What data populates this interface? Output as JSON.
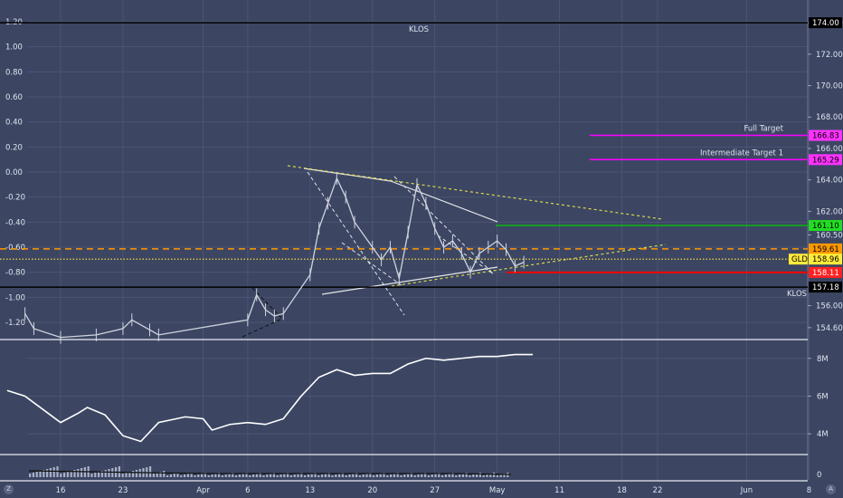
{
  "chart_data": [
    {
      "type": "line",
      "panel": "main",
      "symbol": "GLD",
      "left_axis": {
        "ticks": [
          "1.20",
          "1.00",
          "0.80",
          "0.60",
          "0.40",
          "0.20",
          "0.00",
          "-0.20",
          "-0.40",
          "-0.60",
          "-0.80",
          "-1.00",
          "-1.20"
        ],
        "range": [
          -1.33,
          1.33
        ]
      },
      "right_axis": {
        "ticks": [
          "174.00",
          "172.00",
          "170.00",
          "168.00",
          "166.00",
          "164.00",
          "162.00",
          "160.50",
          "156.00",
          "154.60"
        ],
        "range": [
          153.9,
          175.1
        ]
      },
      "x_ticks": [
        "16",
        "23",
        "Apr",
        "6",
        "13",
        "20",
        "27",
        "May",
        "11",
        "18",
        "22",
        "Jun",
        "8"
      ],
      "price_series": [
        {
          "d": "Mar 12",
          "v": -1.13
        },
        {
          "d": "Mar 13",
          "v": -1.25
        },
        {
          "d": "Mar 16",
          "v": -1.32
        },
        {
          "d": "Mar 20",
          "v": -1.3
        },
        {
          "d": "Mar 23",
          "v": -1.25
        },
        {
          "d": "Mar 24",
          "v": -1.18
        },
        {
          "d": "Mar 26",
          "v": -1.26
        },
        {
          "d": "Mar 27",
          "v": -1.3
        },
        {
          "d": "Apr 6",
          "v": -1.18
        },
        {
          "d": "Apr 7",
          "v": -0.98
        },
        {
          "d": "Apr 8",
          "v": -1.1
        },
        {
          "d": "Apr 9",
          "v": -1.15
        },
        {
          "d": "Apr 10",
          "v": -1.13
        },
        {
          "d": "Apr 13",
          "v": -0.82
        },
        {
          "d": "Apr 14",
          "v": -0.45
        },
        {
          "d": "Apr 15",
          "v": -0.25
        },
        {
          "d": "Apr 16",
          "v": -0.05
        },
        {
          "d": "Apr 17",
          "v": -0.2
        },
        {
          "d": "Apr 18",
          "v": -0.4
        },
        {
          "d": "Apr 20",
          "v": -0.6
        },
        {
          "d": "Apr 21",
          "v": -0.7
        },
        {
          "d": "Apr 22",
          "v": -0.6
        },
        {
          "d": "Apr 23",
          "v": -0.85
        },
        {
          "d": "Apr 24",
          "v": -0.48
        },
        {
          "d": "Apr 25",
          "v": -0.1
        },
        {
          "d": "Apr 26",
          "v": -0.25
        },
        {
          "d": "Apr 27",
          "v": -0.45
        },
        {
          "d": "Apr 28",
          "v": -0.6
        },
        {
          "d": "Apr 29",
          "v": -0.55
        },
        {
          "d": "Apr 30",
          "v": -0.65
        },
        {
          "d": "May 1",
          "v": -0.8
        },
        {
          "d": "May 2",
          "v": -0.65
        },
        {
          "d": "May 3",
          "v": -0.6
        },
        {
          "d": "May 4",
          "v": -0.55
        },
        {
          "d": "May 5",
          "v": -0.62
        },
        {
          "d": "May 6",
          "v": -0.75
        },
        {
          "d": "May 7",
          "v": -0.72
        }
      ],
      "horizontal_lines": [
        {
          "label": "KLOS",
          "price": 174.0,
          "color": "#000000"
        },
        {
          "label": "KLOS",
          "price": 157.18,
          "color": "#000000"
        },
        {
          "label": "Full Target",
          "price": 166.83,
          "color": "#ff00ff"
        },
        {
          "label": "Intermediate Target 1",
          "price": 165.29,
          "color": "#ff00ff"
        },
        {
          "label": "",
          "price": 161.1,
          "color": "#00cc00"
        },
        {
          "label": "",
          "price": 159.61,
          "color": "#ff9800"
        },
        {
          "label": "",
          "price": 158.96,
          "color": "#ffeb3b"
        },
        {
          "label": "",
          "price": 158.11,
          "color": "#ff0000"
        }
      ],
      "price_badges": [
        {
          "text": "174.00",
          "bg": "#000000",
          "fg": "#ffffff",
          "price": 174.0
        },
        {
          "text": "166.83",
          "bg": "#ff33ff",
          "fg": "#000000",
          "price": 166.83
        },
        {
          "text": "165.29",
          "bg": "#ff33ff",
          "fg": "#000000",
          "price": 165.29
        },
        {
          "text": "161.10",
          "bg": "#22dd22",
          "fg": "#000000",
          "price": 161.1
        },
        {
          "text": "159.61",
          "bg": "#ff9800",
          "fg": "#000000",
          "price": 159.61
        },
        {
          "text": "158.96",
          "bg": "#ffeb3b",
          "fg": "#000000",
          "price": 158.96
        },
        {
          "text": "158.11",
          "bg": "#ff2222",
          "fg": "#ffffff",
          "price": 158.11
        },
        {
          "text": "157.18",
          "bg": "#000000",
          "fg": "#ffffff",
          "price": 157.18
        }
      ],
      "symbol_tag": "GLD"
    },
    {
      "type": "line",
      "panel": "indicator",
      "y_ticks": [
        "8M",
        "6M",
        "4M"
      ],
      "range": [
        3.0,
        8.9
      ],
      "series": [
        {
          "d": "Mar 10",
          "v": 6.3
        },
        {
          "d": "Mar 12",
          "v": 6.0
        },
        {
          "d": "Mar 14",
          "v": 5.3
        },
        {
          "d": "Mar 16",
          "v": 4.6
        },
        {
          "d": "Mar 18",
          "v": 5.1
        },
        {
          "d": "Mar 19",
          "v": 5.4
        },
        {
          "d": "Mar 21",
          "v": 5.0
        },
        {
          "d": "Mar 23",
          "v": 3.9
        },
        {
          "d": "Mar 25",
          "v": 3.6
        },
        {
          "d": "Mar 27",
          "v": 4.6
        },
        {
          "d": "Mar 30",
          "v": 4.9
        },
        {
          "d": "Apr 1",
          "v": 4.8
        },
        {
          "d": "Apr 2",
          "v": 4.2
        },
        {
          "d": "Apr 4",
          "v": 4.5
        },
        {
          "d": "Apr 6",
          "v": 4.6
        },
        {
          "d": "Apr 8",
          "v": 4.5
        },
        {
          "d": "Apr 10",
          "v": 4.8
        },
        {
          "d": "Apr 12",
          "v": 6.0
        },
        {
          "d": "Apr 14",
          "v": 7.0
        },
        {
          "d": "Apr 16",
          "v": 7.4
        },
        {
          "d": "Apr 18",
          "v": 7.1
        },
        {
          "d": "Apr 20",
          "v": 7.2
        },
        {
          "d": "Apr 22",
          "v": 7.2
        },
        {
          "d": "Apr 24",
          "v": 7.7
        },
        {
          "d": "Apr 26",
          "v": 8.0
        },
        {
          "d": "Apr 28",
          "v": 7.9
        },
        {
          "d": "Apr 30",
          "v": 8.0
        },
        {
          "d": "May 2",
          "v": 8.1
        },
        {
          "d": "May 4",
          "v": 8.1
        },
        {
          "d": "May 6",
          "v": 8.2
        },
        {
          "d": "May 8",
          "v": 8.2
        }
      ]
    },
    {
      "type": "bar",
      "panel": "volume",
      "y_ticks": [
        "0"
      ]
    }
  ],
  "ui": {
    "bottom_left_logo": "Z",
    "bottom_right_button": "A"
  },
  "colors": {
    "background": "#3c4663",
    "grid": "#4b5573",
    "price_line": "#cfd3de",
    "indicator_line": "#ffffff"
  }
}
